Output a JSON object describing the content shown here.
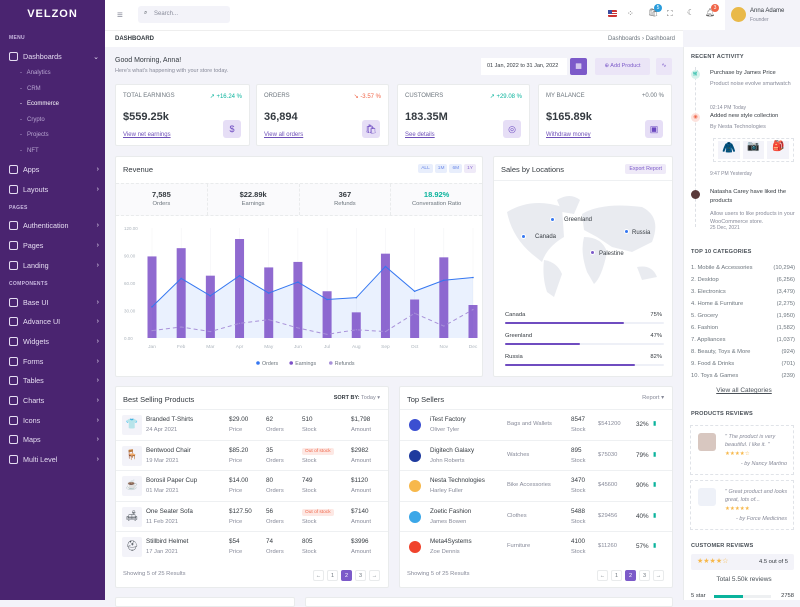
{
  "brand": "VELZON",
  "sidebar": {
    "sections": [
      "MENU",
      "PAGES",
      "COMPONENTS"
    ],
    "items": [
      {
        "label": "Dashboards",
        "icon": "dashboard-icon",
        "expanded": true
      },
      {
        "label": "Apps",
        "icon": "apps-icon"
      },
      {
        "label": "Layouts",
        "icon": "layouts-icon"
      },
      {
        "label": "Authentication",
        "icon": "user-circle-icon"
      },
      {
        "label": "Pages",
        "icon": "pages-icon"
      },
      {
        "label": "Landing",
        "icon": "rocket-icon"
      },
      {
        "label": "Base UI",
        "icon": "base-ui-icon"
      },
      {
        "label": "Advance UI",
        "icon": "stack-icon"
      },
      {
        "label": "Widgets",
        "icon": "widgets-icon"
      },
      {
        "label": "Forms",
        "icon": "forms-icon"
      },
      {
        "label": "Tables",
        "icon": "table-icon"
      },
      {
        "label": "Charts",
        "icon": "chart-icon"
      },
      {
        "label": "Icons",
        "icon": "compass-icon"
      },
      {
        "label": "Maps",
        "icon": "map-pin-icon"
      },
      {
        "label": "Multi Level",
        "icon": "share-icon"
      }
    ],
    "subitems": [
      "Analytics",
      "CRM",
      "Ecommerce",
      "Crypto",
      "Projects",
      "NFT"
    ],
    "active_sub": "Ecommerce"
  },
  "topbar": {
    "search_placeholder": "Search...",
    "cart_badge": "5",
    "notif_badge": "3",
    "user_name": "Anna Adame",
    "user_role": "Founder"
  },
  "titlebar": {
    "title": "DASHBOARD",
    "breadcrumb": [
      "Dashboards",
      "Dashboard"
    ]
  },
  "greeting": {
    "title": "Good Morning, Anna!",
    "subtitle": "Here's what's happening with your store today.",
    "date_range": "01 Jan, 2022 to 31 Jan, 2022",
    "add_product": "Add Product"
  },
  "kpis": [
    {
      "label": "TOTAL EARNINGS",
      "change": "+16.24 %",
      "trend": "up",
      "value": "$559.25k",
      "link": "View net earnings",
      "icon": "dollar-icon"
    },
    {
      "label": "ORDERS",
      "change": "-3.57 %",
      "trend": "down",
      "value": "36,894",
      "link": "View all orders",
      "icon": "shopping-bag-icon"
    },
    {
      "label": "CUSTOMERS",
      "change": "+29.08 %",
      "trend": "up",
      "value": "183.35M",
      "link": "See details",
      "icon": "user-icon"
    },
    {
      "label": "MY BALANCE",
      "change": "+0.00 %",
      "trend": "flat",
      "value": "$165.89k",
      "link": "Withdraw money",
      "icon": "wallet-icon"
    }
  ],
  "colors": {
    "up": "#0ab39c",
    "down": "#f06548",
    "primary": "#7c5ac9",
    "sidebar": "#4a2470",
    "orders": "#3577f1",
    "earnings": "#7c50c8",
    "refunds": "#a891d9"
  },
  "revenue": {
    "title": "Revenue",
    "filters": [
      "ALL",
      "1M",
      "6M",
      "1Y"
    ],
    "stats": [
      {
        "value": "7,585",
        "label": "Orders"
      },
      {
        "value": "$22.89k",
        "label": "Earnings"
      },
      {
        "value": "367",
        "label": "Refunds"
      },
      {
        "value": "18.92%",
        "label": "Conversation Ratio"
      }
    ]
  },
  "chart_data": {
    "type": "bar",
    "categories": [
      "Jan",
      "Feb",
      "Mar",
      "Apr",
      "May",
      "Jun",
      "Jul",
      "Aug",
      "Sep",
      "Oct",
      "Nov",
      "Dec"
    ],
    "ylim": [
      0,
      120
    ],
    "yticks": [
      "0.00",
      "30.00",
      "60.00",
      "90.00",
      "120.00"
    ],
    "legend": "bottom",
    "series": [
      {
        "name": "Orders",
        "type": "area",
        "values": [
          34,
          65,
          46,
          68,
          49,
          61,
          42,
          44,
          78,
          51,
          63,
          66
        ]
      },
      {
        "name": "Earnings",
        "type": "bar",
        "values": [
          89,
          98,
          68,
          108,
          77,
          83,
          51,
          28,
          92,
          42,
          88,
          36
        ]
      },
      {
        "name": "Refunds",
        "type": "dashed-line",
        "values": [
          8,
          12,
          7,
          16,
          20,
          11,
          4,
          9,
          7,
          27,
          13,
          31
        ]
      }
    ]
  },
  "locations": {
    "title": "Sales by Locations",
    "export": "Export Report",
    "markers": [
      "Greenland",
      "Canada",
      "Russia",
      "Palestine"
    ],
    "bars": [
      {
        "name": "Canada",
        "pct": 75,
        "label": "75%"
      },
      {
        "name": "Greenland",
        "pct": 47,
        "label": "47%"
      },
      {
        "name": "Russia",
        "pct": 82,
        "label": "82%"
      }
    ]
  },
  "best_selling": {
    "title": "Best Selling Products",
    "sort_label": "SORT BY:",
    "sort_value": "Today",
    "rows": [
      {
        "name": "Branded T-Shirts",
        "date": "24 Apr 2021",
        "price": "$29.00",
        "orders": "62",
        "stock": "510",
        "amount": "$1,798",
        "icon": "tshirt-icon",
        "emoji": "👕"
      },
      {
        "name": "Bentwood Chair",
        "date": "19 Mar 2021",
        "price": "$85.20",
        "orders": "35",
        "stock": "Out of stock",
        "amount": "$2982",
        "icon": "chair-icon",
        "emoji": "🪑"
      },
      {
        "name": "Borosil Paper Cup",
        "date": "01 Mar 2021",
        "price": "$14.00",
        "orders": "80",
        "stock": "749",
        "amount": "$1120",
        "icon": "cup-icon",
        "emoji": "☕"
      },
      {
        "name": "One Seater Sofa",
        "date": "11 Feb 2021",
        "price": "$127.50",
        "orders": "56",
        "stock": "Out of stock",
        "amount": "$7140",
        "icon": "sofa-icon",
        "emoji": "🛋"
      },
      {
        "name": "Stillbird Helmet",
        "date": "17 Jan 2021",
        "price": "$54",
        "orders": "74",
        "stock": "805",
        "amount": "$3996",
        "icon": "helmet-icon",
        "emoji": "⛑"
      }
    ],
    "sub_labels": {
      "price": "Price",
      "orders": "Orders",
      "stock": "Stock",
      "amount": "Amount"
    },
    "showing": "Showing 5 of 25 Results",
    "pages": [
      "←",
      "1",
      "2",
      "3",
      "→"
    ],
    "current_page": "2"
  },
  "top_sellers": {
    "title": "Top Sellers",
    "report": "Report",
    "rows": [
      {
        "name": "iTest Factory",
        "person": "Oliver Tyler",
        "category": "Bags and Wallets",
        "stock": "8547",
        "amount": "$541200",
        "pct": "32%",
        "color": "#3b4fd1"
      },
      {
        "name": "Digitech Galaxy",
        "person": "John Roberts",
        "category": "Watches",
        "stock": "895",
        "amount": "$75030",
        "pct": "79%",
        "color": "#1e3a9e"
      },
      {
        "name": "Nesta Technologies",
        "person": "Harley Fuller",
        "category": "Bike Accessories",
        "stock": "3470",
        "amount": "$45600",
        "pct": "90%",
        "color": "#f7b84b"
      },
      {
        "name": "Zoetic Fashion",
        "person": "James Bowen",
        "category": "Clothes",
        "stock": "5488",
        "amount": "$29456",
        "pct": "40%",
        "color": "#3ba7e8"
      },
      {
        "name": "Meta4Systems",
        "person": "Zoe Dennis",
        "category": "Furniture",
        "stock": "4100",
        "amount": "$11260",
        "pct": "57%",
        "color": "#f0432c"
      }
    ],
    "stock_label": "Stock",
    "showing": "Showing 5 of 25 Results",
    "pages": [
      "←",
      "1",
      "2",
      "3",
      "→"
    ]
  },
  "right": {
    "activity_title": "RECENT ACTIVITY",
    "activities": [
      {
        "title": "Purchase by James Price",
        "desc": "Product noise evolve smartwatch",
        "time": "02:14 PM Today"
      },
      {
        "title": "Added new style collection",
        "desc": "By Nesta Technologies",
        "time": "9:47 PM Yesterday"
      },
      {
        "title": "Natasha Carey have liked the products",
        "desc": "Allow users to like products in your WooCommerce store.",
        "time": "25 Dec, 2021"
      }
    ],
    "categories_title": "TOP 10 CATEGORIES",
    "categories": [
      {
        "name": "1. Mobile & Accessories",
        "count": "(10,294)"
      },
      {
        "name": "2. Desktop",
        "count": "(6,256)"
      },
      {
        "name": "3. Electronics",
        "count": "(3,479)"
      },
      {
        "name": "4. Home & Furniture",
        "count": "(2,275)"
      },
      {
        "name": "5. Grocery",
        "count": "(1,950)"
      },
      {
        "name": "6. Fashion",
        "count": "(1,582)"
      },
      {
        "name": "7. Appliances",
        "count": "(1,037)"
      },
      {
        "name": "8. Beauty, Toys & More",
        "count": "(924)"
      },
      {
        "name": "9. Food & Drinks",
        "count": "(701)"
      },
      {
        "name": "10. Toys & Games",
        "count": "(239)"
      }
    ],
    "view_all": "View all Categories",
    "reviews_title": "PRODUCTS REVIEWS",
    "reviews": [
      {
        "text": "\" The product is very beautiful. I like it. \"",
        "by": "- by Nancy Martino",
        "stars": 4.5
      },
      {
        "text": "\" Great product and looks great, lots of...",
        "by": "- by Force Medicines",
        "stars": 5
      }
    ],
    "customer_title": "CUSTOMER REVIEWS",
    "rating": "4.5 out of 5",
    "rating_value": 4.5,
    "total": "Total 5.50k reviews",
    "star_row": {
      "label": "5 star",
      "count": "2758",
      "pct": 50
    }
  }
}
